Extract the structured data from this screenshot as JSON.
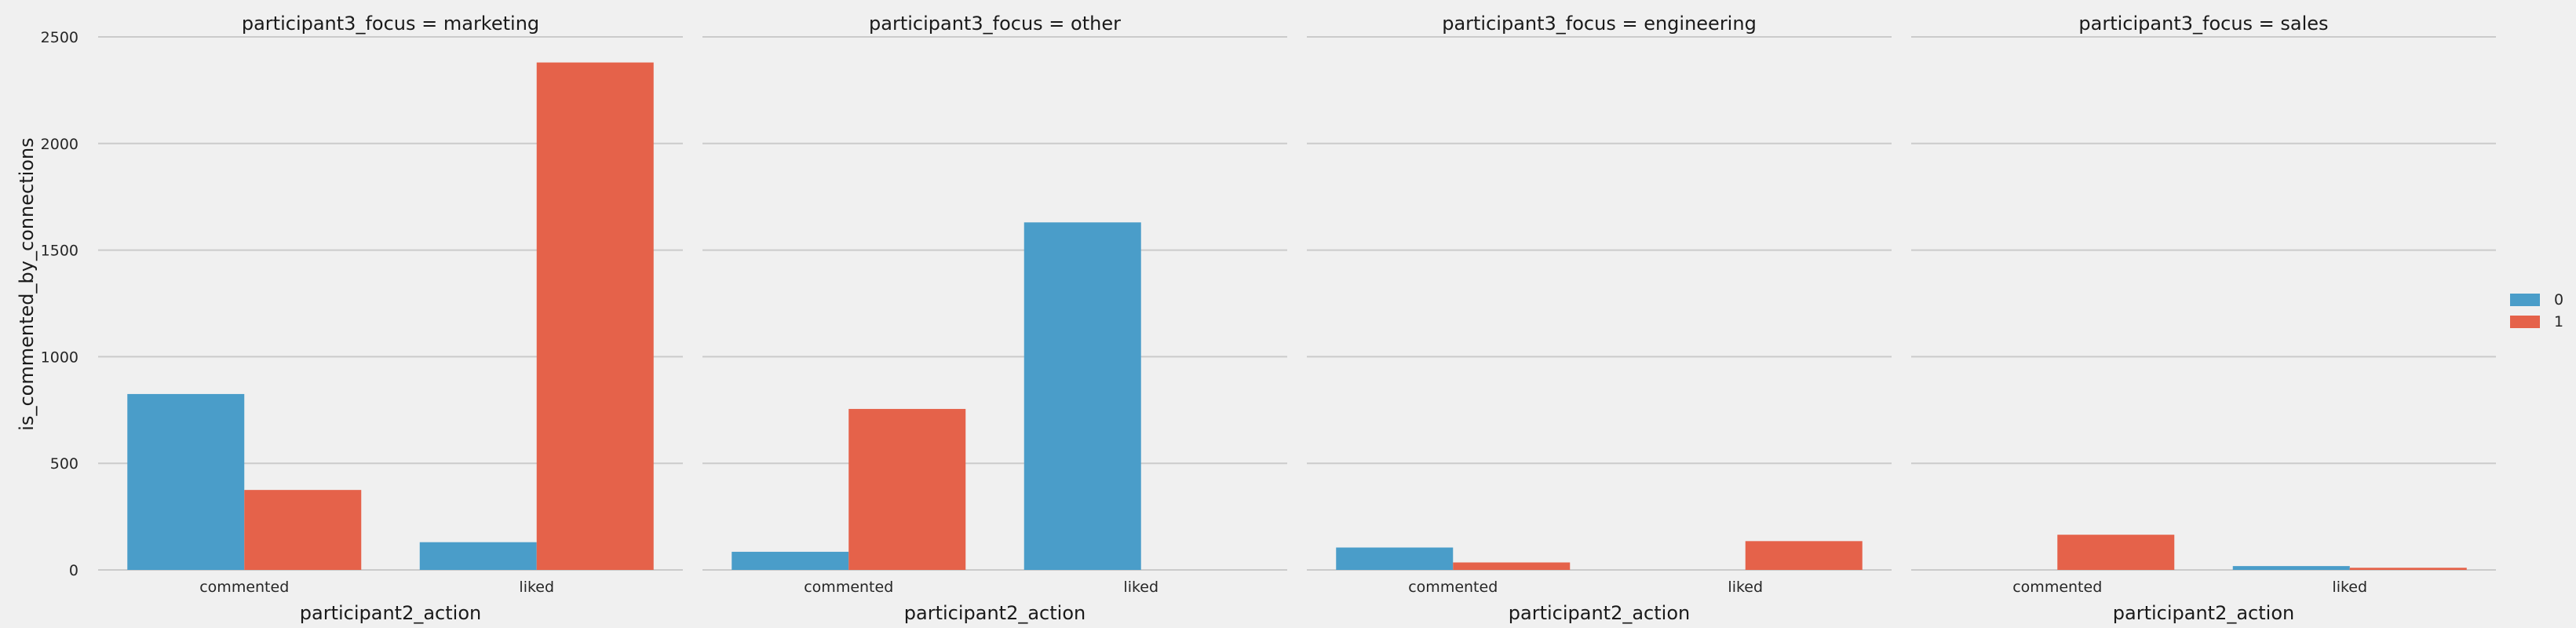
{
  "chart_data": {
    "type": "bar",
    "ylabel": "is_commented_by_connections",
    "ylim": [
      0,
      2500
    ],
    "yticks": [
      0,
      500,
      1000,
      1500,
      2000,
      2500
    ],
    "grid": true,
    "legend_position": "right",
    "colors": {
      "0": "#4a9dc9",
      "1": "#e5624a"
    },
    "facets": [
      {
        "title": "participant3_focus = marketing",
        "xlabel": "participant2_action",
        "categories": [
          "commented",
          "liked"
        ],
        "series": [
          {
            "name": "0",
            "values": [
              825,
              130
            ]
          },
          {
            "name": "1",
            "values": [
              375,
              2380
            ]
          }
        ]
      },
      {
        "title": "participant3_focus = other",
        "xlabel": "participant2_action",
        "categories": [
          "commented",
          "liked"
        ],
        "series": [
          {
            "name": "0",
            "values": [
              85,
              1630
            ]
          },
          {
            "name": "1",
            "values": [
              755,
              0
            ]
          }
        ]
      },
      {
        "title": "participant3_focus = engineering",
        "xlabel": "participant2_action",
        "categories": [
          "commented",
          "liked"
        ],
        "series": [
          {
            "name": "0",
            "values": [
              105,
              0
            ]
          },
          {
            "name": "1",
            "values": [
              35,
              135
            ]
          }
        ]
      },
      {
        "title": "participant3_focus = sales",
        "xlabel": "participant2_action",
        "categories": [
          "commented",
          "liked"
        ],
        "series": [
          {
            "name": "0",
            "values": [
              0,
              18
            ]
          },
          {
            "name": "1",
            "values": [
              165,
              10
            ]
          }
        ]
      }
    ]
  }
}
